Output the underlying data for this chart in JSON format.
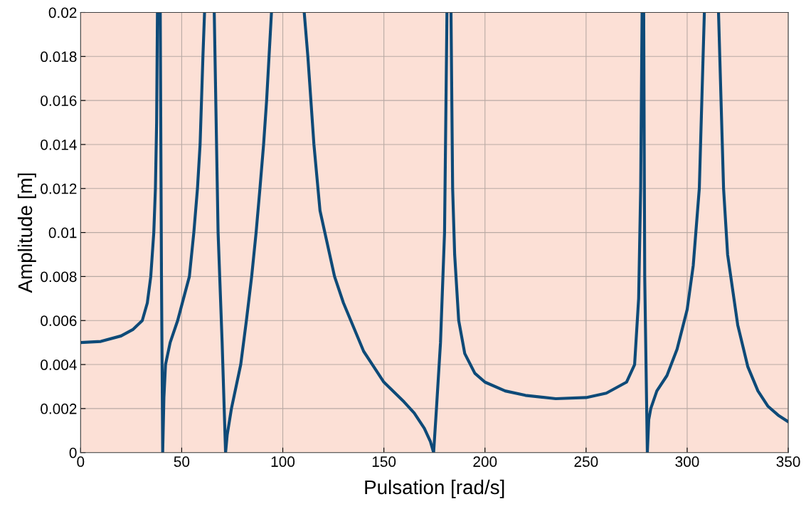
{
  "chart_data": {
    "type": "line",
    "xlabel": "Pulsation [rad/s]",
    "ylabel": "Amplitude [m]",
    "xlim": [
      0,
      350
    ],
    "ylim": [
      0,
      0.02
    ],
    "xticks": [
      0,
      50,
      100,
      150,
      200,
      250,
      300,
      350
    ],
    "yticks": [
      0,
      0.002,
      0.004,
      0.006,
      0.008,
      0.01,
      0.012,
      0.014,
      0.016,
      0.018,
      0.02
    ],
    "grid": true,
    "marker": "none",
    "line_style": "solid",
    "series": [
      {
        "color": "#0e4a78",
        "x": [
          0,
          10,
          20,
          26,
          30.5,
          33,
          34.7,
          36.2,
          37,
          37.6,
          38.0,
          38.5,
          39.4,
          40,
          40.6,
          41.2,
          42,
          44.3,
          48,
          53.8,
          56,
          57.8,
          59.1,
          60.5,
          61.3,
          62,
          66.1,
          68,
          70,
          71.7,
          72.5,
          74.6,
          79.2,
          82,
          84.6,
          86.8,
          88.7,
          90.5,
          92,
          93.2,
          94.4,
          100,
          110.6,
          112.4,
          115.4,
          118.4,
          125.6,
          130,
          140,
          150,
          160,
          165,
          170,
          173,
          174.6,
          176,
          178,
          180,
          181.2,
          182,
          183.2,
          184,
          185,
          187,
          190,
          195,
          200,
          210,
          220,
          235,
          250,
          260,
          270,
          274,
          276,
          277,
          277.7,
          278.2,
          278.5,
          279,
          280.3,
          281,
          282,
          285,
          290,
          295,
          300,
          303,
          306,
          308.5,
          312,
          315.5,
          318,
          320,
          325,
          330,
          335,
          340,
          345,
          350
        ],
        "values": [
          0.005,
          0.00505,
          0.0053,
          0.0056,
          0.006,
          0.0068,
          0.008,
          0.01,
          0.012,
          0.015,
          0.02,
          null,
          0.02,
          0.008,
          0,
          0.0025,
          0.004,
          0.005,
          0.006,
          0.008,
          0.01,
          0.012,
          0.014,
          0.018,
          0.02,
          null,
          0.02,
          0.01,
          0.005,
          0,
          0.0008,
          0.002,
          0.004,
          0.006,
          0.008,
          0.01,
          0.012,
          0.014,
          0.016,
          0.018,
          0.02,
          null,
          0.02,
          0.018,
          0.014,
          0.011,
          0.008,
          0.0068,
          0.0046,
          0.0032,
          0.0023,
          0.0018,
          0.0011,
          0.0005,
          0,
          0.002,
          0.005,
          0.01,
          0.02,
          null,
          0.02,
          0.012,
          0.009,
          0.006,
          0.0045,
          0.0036,
          0.0032,
          0.0028,
          0.0026,
          0.00245,
          0.0025,
          0.0027,
          0.0032,
          0.004,
          0.007,
          0.012,
          0.02,
          null,
          0.02,
          0.008,
          0,
          0.0015,
          0.002,
          0.0028,
          0.0035,
          0.0047,
          0.0065,
          0.0085,
          0.012,
          0.02,
          null,
          0.02,
          0.012,
          0.009,
          0.0058,
          0.0039,
          0.0028,
          0.0021,
          0.0017,
          0.0014
        ]
      }
    ]
  }
}
